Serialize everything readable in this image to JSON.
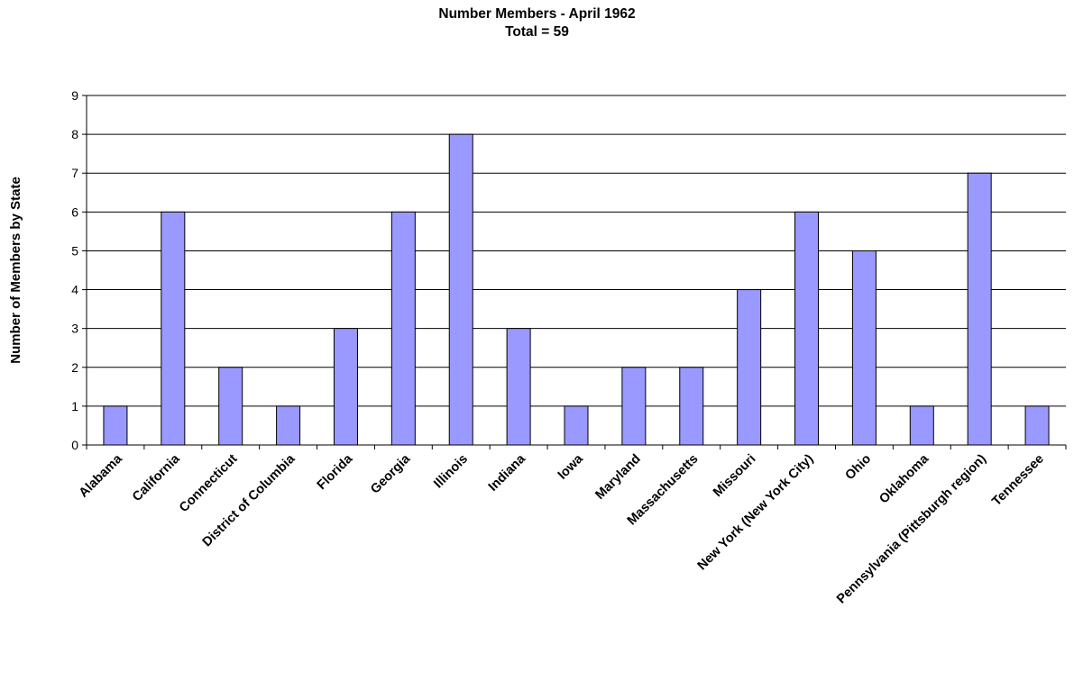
{
  "chart_data": {
    "type": "bar",
    "title": "Number Members - April 1962",
    "subtitle": "Total = 59",
    "xlabel": "",
    "ylabel": "Number of Members by State",
    "ylim": [
      0,
      9
    ],
    "yticks": [
      0,
      1,
      2,
      3,
      4,
      5,
      6,
      7,
      8,
      9
    ],
    "grid": true,
    "categories": [
      "Alabama",
      "California",
      "Connecticut",
      "District of Columbia",
      "Florida",
      "Georgia",
      "Illinois",
      "Indiana",
      "Iowa",
      "Maryland",
      "Massachusetts",
      "Missouri",
      "New York (New York City)",
      "Ohio",
      "Oklahoma",
      "Pennsylvania (Pittsburgh region)",
      "Tennessee"
    ],
    "values": [
      1,
      6,
      2,
      1,
      3,
      6,
      8,
      3,
      1,
      2,
      2,
      4,
      6,
      5,
      1,
      7,
      1
    ],
    "colors": {
      "bar_fill": "#9999ff",
      "bar_stroke": "#000000",
      "grid": "#000000",
      "axis": "#000000"
    }
  }
}
